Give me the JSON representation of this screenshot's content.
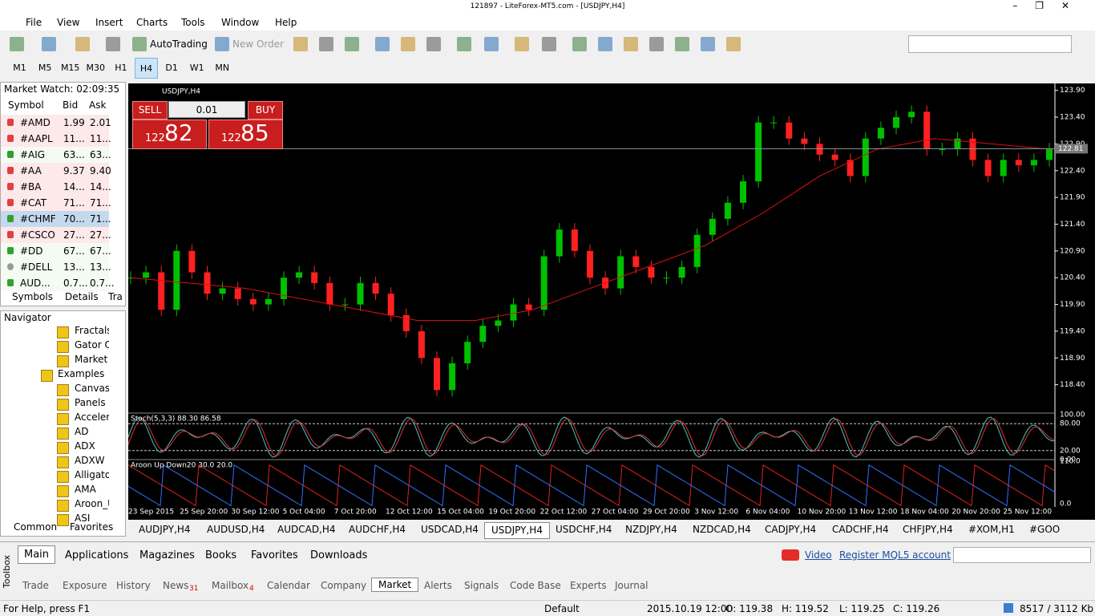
{
  "window_title": "121897 - LiteForex-MT5.com - [USDJPY,H4]",
  "menu": [
    "File",
    "View",
    "Insert",
    "Charts",
    "Tools",
    "Window",
    "Help"
  ],
  "toolbar": {
    "autotrading": "AutoTrading",
    "new_order": "New Order"
  },
  "timeframes": [
    "M1",
    "M5",
    "M15",
    "M30",
    "H1",
    "H4",
    "D1",
    "W1",
    "MN"
  ],
  "market_watch": {
    "title": "Market Watch: 02:09:35",
    "columns": [
      "Symbol",
      "Bid",
      "Ask"
    ],
    "rows": [
      {
        "symbol": "#AMD",
        "bid": "1.99",
        "ask": "2.01",
        "trend": "down"
      },
      {
        "symbol": "#AAPL",
        "bid": "11...",
        "ask": "11...",
        "trend": "down"
      },
      {
        "symbol": "#AIG",
        "bid": "63...",
        "ask": "63...",
        "trend": "up"
      },
      {
        "symbol": "#AA",
        "bid": "9.37",
        "ask": "9.40",
        "trend": "down"
      },
      {
        "symbol": "#BA",
        "bid": "14...",
        "ask": "14...",
        "trend": "down"
      },
      {
        "symbol": "#CAT",
        "bid": "71...",
        "ask": "71...",
        "trend": "down"
      },
      {
        "symbol": "#CHMF",
        "bid": "70...",
        "ask": "71...",
        "trend": "up"
      },
      {
        "symbol": "#CSCO",
        "bid": "27...",
        "ask": "27...",
        "trend": "down"
      },
      {
        "symbol": "#DD",
        "bid": "67...",
        "ask": "67...",
        "trend": "up"
      },
      {
        "symbol": "#DELL",
        "bid": "13...",
        "ask": "13...",
        "trend": "none"
      },
      {
        "symbol": "AUD...",
        "bid": "0.7...",
        "ask": "0.7...",
        "trend": "up"
      }
    ],
    "tabs": [
      "Symbols",
      "Details",
      "Tra"
    ]
  },
  "navigator": {
    "title": "Navigator",
    "items": [
      "Fractals",
      "Gator Os",
      "Market F",
      "Examples",
      "Canvas",
      "Panels",
      "Accelera",
      "AD",
      "ADX",
      "ADXW",
      "Alligator",
      "AMA",
      "Aroon_U",
      "ASI"
    ],
    "tabs": [
      "Common",
      "Favorites"
    ]
  },
  "chart": {
    "type": "candlestick",
    "symbol": "USDJPY,H4",
    "trade_panel": {
      "sell": "SELL",
      "buy": "BUY",
      "lot": "0.01",
      "sell_small": "122",
      "sell_big": "82",
      "buy_small": "122",
      "buy_big": "85"
    },
    "ylim": [
      117.87,
      124.03
    ],
    "yticks": [
      {
        "value": 123.9,
        "label": "123.90"
      },
      {
        "value": 123.4,
        "label": "123.40"
      },
      {
        "value": 122.9,
        "label": "122.90"
      },
      {
        "value": 122.4,
        "label": "122.40"
      },
      {
        "value": 121.9,
        "label": "121.90"
      },
      {
        "value": 121.4,
        "label": "121.40"
      },
      {
        "value": 120.9,
        "label": "120.90"
      },
      {
        "value": 120.4,
        "label": "120.40"
      },
      {
        "value": 119.9,
        "label": "119.90"
      },
      {
        "value": 119.4,
        "label": "119.40"
      },
      {
        "value": 118.9,
        "label": "118.90"
      },
      {
        "value": 118.4,
        "label": "118.40"
      }
    ],
    "current_price": 122.81,
    "closes": [
      120.4,
      120.5,
      119.8,
      120.9,
      120.5,
      120.1,
      120.2,
      120.0,
      119.9,
      120.0,
      120.4,
      120.5,
      120.3,
      119.9,
      119.9,
      120.3,
      120.1,
      119.7,
      119.4,
      118.9,
      118.3,
      118.8,
      119.2,
      119.5,
      119.6,
      119.9,
      119.8,
      120.8,
      121.3,
      120.9,
      120.4,
      120.2,
      120.8,
      120.6,
      120.4,
      120.4,
      120.6,
      121.2,
      121.5,
      121.8,
      122.2,
      123.3,
      123.3,
      123.0,
      122.9,
      122.7,
      122.6,
      122.3,
      123.0,
      123.2,
      123.4,
      123.5,
      122.8,
      122.8,
      123.0,
      122.6,
      122.3,
      122.6,
      122.5,
      122.6,
      122.8
    ],
    "ma": [
      120.4,
      120.3,
      120.2,
      120.0,
      119.8,
      119.6,
      119.6,
      119.8,
      120.2,
      120.6,
      121.0,
      121.6,
      122.3,
      122.8,
      123.0,
      122.9,
      122.8
    ],
    "up_color": "#00c000",
    "down_color": "#ff2020",
    "ma_color": "#e01010",
    "x_labels": [
      "23 Sep 2015",
      "25 Sep 20:00",
      "30 Sep 12:00",
      "5 Oct 04:00",
      "7 Oct 20:00",
      "12 Oct 12:00",
      "15 Oct 04:00",
      "19 Oct 20:00",
      "22 Oct 12:00",
      "27 Oct 04:00",
      "29 Oct 20:00",
      "3 Nov 12:00",
      "6 Nov 04:00",
      "10 Nov 20:00",
      "13 Nov 12:00",
      "18 Nov 04:00",
      "20 Nov 20:00",
      "25 Nov 12:00"
    ],
    "stoch": {
      "label": "Stoch(5,3,3) 88.30 86.58",
      "ylim": [
        0,
        100
      ],
      "yticks": [
        {
          "value": 100,
          "label": "100.00"
        },
        {
          "value": 80,
          "label": "80.00"
        },
        {
          "value": 20,
          "label": "20.00"
        },
        {
          "value": 0,
          "label": "0.00"
        }
      ]
    },
    "aroon": {
      "label": "Aroon Up Down20 30.0 20.0",
      "ylim": [
        0,
        110
      ],
      "yticks": [
        {
          "value": 110,
          "label": "110.0"
        },
        {
          "value": 0,
          "label": "0.0"
        }
      ]
    }
  },
  "chart_tabs": [
    "AUDJPY,H4",
    "AUDUSD,H4",
    "AUDCAD,H4",
    "AUDCHF,H4",
    "USDCAD,H4",
    "USDJPY,H4",
    "USDCHF,H4",
    "NZDJPY,H4",
    "NZDCAD,H4",
    "CADJPY,H4",
    "CADCHF,H4",
    "CHFJPY,H4",
    "#XOM,H1",
    "#GOO"
  ],
  "toolbox": {
    "label": "Toolbox",
    "top_tabs": [
      "Main",
      "Applications",
      "Magazines",
      "Books",
      "Favorites",
      "Downloads"
    ],
    "video": "Video",
    "register": "Register MQL5 account",
    "bottom_tabs": [
      {
        "label": "Trade"
      },
      {
        "label": "Exposure"
      },
      {
        "label": "History"
      },
      {
        "label": "News",
        "badge": "31"
      },
      {
        "label": "Mailbox",
        "badge": "4"
      },
      {
        "label": "Calendar"
      },
      {
        "label": "Company"
      },
      {
        "label": "Market"
      },
      {
        "label": "Alerts"
      },
      {
        "label": "Signals"
      },
      {
        "label": "Code Base"
      },
      {
        "label": "Experts"
      },
      {
        "label": "Journal"
      }
    ]
  },
  "status": {
    "help": "For Help, press F1",
    "profile": "Default",
    "time": "2015.10.19 12:00",
    "open": "O: 119.38",
    "high": "H: 119.52",
    "low": "L: 119.25",
    "close": "C: 119.26",
    "memory": "8517 / 3112 Kb"
  }
}
